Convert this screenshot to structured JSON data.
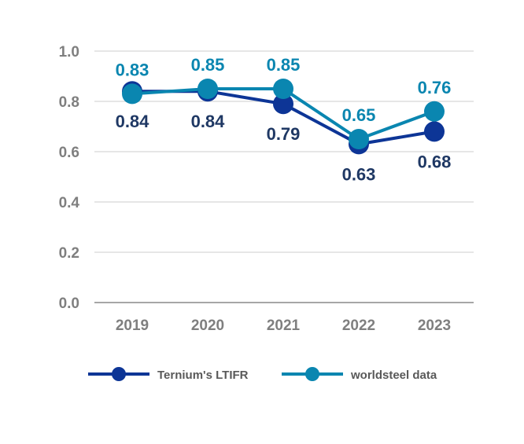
{
  "chart_data": {
    "type": "line",
    "title": "",
    "xlabel": "",
    "ylabel": "",
    "categories": [
      "2019",
      "2020",
      "2021",
      "2022",
      "2023"
    ],
    "ylim": [
      0,
      1.0
    ],
    "yticks": [
      "0.0",
      "0.2",
      "0.4",
      "0.6",
      "0.8",
      "1.0"
    ],
    "grid": true,
    "legend_position": "bottom",
    "series": [
      {
        "name": "Ternium's LTIFR",
        "values": [
          0.84,
          0.84,
          0.79,
          0.63,
          0.68
        ],
        "labels": [
          "0.84",
          "0.84",
          "0.79",
          "0.63",
          "0.68"
        ],
        "color": "#0d3596",
        "label_color": "#1f3864",
        "label_position": "below"
      },
      {
        "name": "worldsteel data",
        "values": [
          0.83,
          0.85,
          0.85,
          0.65,
          0.76
        ],
        "labels": [
          "0.83",
          "0.85",
          "0.85",
          "0.65",
          "0.76"
        ],
        "color": "#0a86b0",
        "label_color": "#0a86b0",
        "label_position": "above"
      }
    ]
  }
}
